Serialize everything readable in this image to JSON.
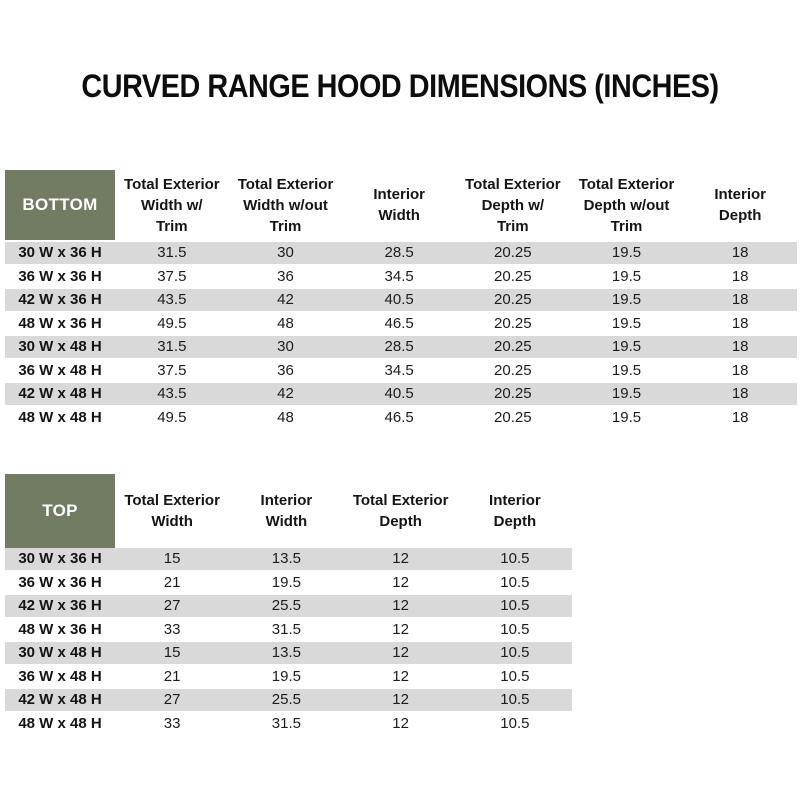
{
  "page": {
    "title": "CURVED RANGE HOOD DIMENSIONS (INCHES)"
  },
  "colors": {
    "header_green": "#717c63",
    "header_text": "#ffffff",
    "stripe_gray": "#d9d9d9",
    "row_white": "#ffffff",
    "text_dark": "#1d1d1d"
  },
  "bottom_table": {
    "label": "BOTTOM",
    "columns": [
      "Total Exterior\nWidth w/\nTrim",
      "Total Exterior\nWidth w/out\nTrim",
      "Interior\nWidth",
      "Total Exterior\nDepth w/\nTrim",
      "Total Exterior\nDepth w/out\nTrim",
      "Interior\nDepth"
    ],
    "rows": [
      {
        "label": "30 W x 36 H",
        "values": [
          "31.5",
          "30",
          "28.5",
          "20.25",
          "19.5",
          "18"
        ]
      },
      {
        "label": "36 W x 36 H",
        "values": [
          "37.5",
          "36",
          "34.5",
          "20.25",
          "19.5",
          "18"
        ]
      },
      {
        "label": "42 W x 36 H",
        "values": [
          "43.5",
          "42",
          "40.5",
          "20.25",
          "19.5",
          "18"
        ]
      },
      {
        "label": "48 W x 36 H",
        "values": [
          "49.5",
          "48",
          "46.5",
          "20.25",
          "19.5",
          "18"
        ]
      },
      {
        "label": "30 W x 48 H",
        "values": [
          "31.5",
          "30",
          "28.5",
          "20.25",
          "19.5",
          "18"
        ]
      },
      {
        "label": "36 W x 48 H",
        "values": [
          "37.5",
          "36",
          "34.5",
          "20.25",
          "19.5",
          "18"
        ]
      },
      {
        "label": "42 W x 48 H",
        "values": [
          "43.5",
          "42",
          "40.5",
          "20.25",
          "19.5",
          "18"
        ]
      },
      {
        "label": "48 W x 48 H",
        "values": [
          "49.5",
          "48",
          "46.5",
          "20.25",
          "19.5",
          "18"
        ]
      }
    ]
  },
  "top_table": {
    "label": "TOP",
    "columns": [
      "Total Exterior\nWidth",
      "Interior\nWidth",
      "Total Exterior\nDepth",
      "Interior\nDepth"
    ],
    "rows": [
      {
        "label": "30 W x 36 H",
        "values": [
          "15",
          "13.5",
          "12",
          "10.5"
        ]
      },
      {
        "label": "36 W x 36 H",
        "values": [
          "21",
          "19.5",
          "12",
          "10.5"
        ]
      },
      {
        "label": "42 W x 36 H",
        "values": [
          "27",
          "25.5",
          "12",
          "10.5"
        ]
      },
      {
        "label": "48 W x 36 H",
        "values": [
          "33",
          "31.5",
          "12",
          "10.5"
        ]
      },
      {
        "label": "30 W x 48 H",
        "values": [
          "15",
          "13.5",
          "12",
          "10.5"
        ]
      },
      {
        "label": "36 W x 48 H",
        "values": [
          "21",
          "19.5",
          "12",
          "10.5"
        ]
      },
      {
        "label": "42 W x 48 H",
        "values": [
          "27",
          "25.5",
          "12",
          "10.5"
        ]
      },
      {
        "label": "48 W x 48 H",
        "values": [
          "33",
          "31.5",
          "12",
          "10.5"
        ]
      }
    ]
  }
}
